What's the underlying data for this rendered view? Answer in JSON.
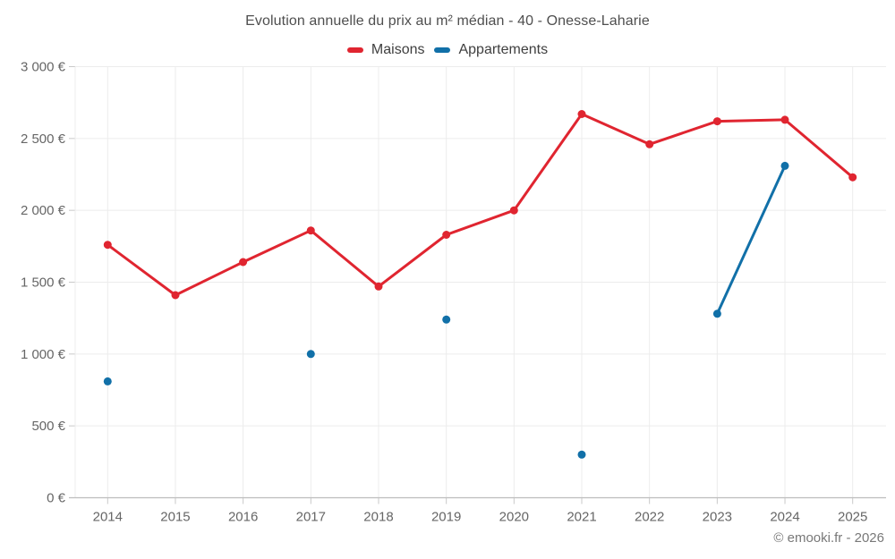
{
  "title": "Evolution annuelle du prix au m² médian - 40 - Onesse-Laharie",
  "footer": "© emooki.fr - 2026",
  "chart_data": {
    "type": "line",
    "title": "Evolution annuelle du prix au m² médian - 40 - Onesse-Laharie",
    "categories": [
      "2014",
      "2015",
      "2016",
      "2017",
      "2018",
      "2019",
      "2020",
      "2021",
      "2022",
      "2023",
      "2024",
      "2025"
    ],
    "series": [
      {
        "name": "Maisons",
        "color": "#e02530",
        "values": [
          1760,
          1410,
          1640,
          1860,
          1470,
          1830,
          2000,
          2670,
          2460,
          2620,
          2630,
          2230
        ]
      },
      {
        "name": "Appartements",
        "color": "#1170a8",
        "values": [
          810,
          null,
          null,
          1000,
          null,
          1240,
          null,
          300,
          null,
          1280,
          2310,
          null
        ]
      }
    ],
    "ylim": [
      0,
      3000
    ],
    "y_ticks": [
      0,
      500,
      1000,
      1500,
      2000,
      2500,
      3000
    ],
    "y_tick_labels": [
      "0 €",
      "500 €",
      "1 000 €",
      "1 500 €",
      "2 000 €",
      "2 500 €",
      "3 000 €"
    ],
    "unit": "€",
    "grid": true,
    "legend_position": "top",
    "style": {
      "grid_color": "#ececec",
      "tick_color": "#c9c9c9",
      "axis_color": "#bdbdbd",
      "label_color": "#666666"
    }
  }
}
